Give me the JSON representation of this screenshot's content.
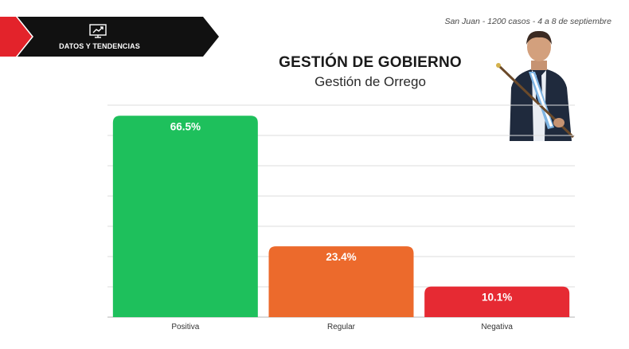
{
  "header": {
    "brand_label": "DATOS Y TENDENCIAS",
    "brand_icon": "trend-chart-icon",
    "survey_info": "San Juan - 1200 casos - 4 a 8 de septiembre"
  },
  "colors": {
    "brand_black": "#111111",
    "brand_red": "#e3232b",
    "positiva": "#1ec05c",
    "regular": "#ec6a2c",
    "negativa": "#e62a33"
  },
  "chart_data": {
    "type": "bar",
    "title": "GESTIÓN DE GOBIERNO",
    "subtitle": "Gestión de Orrego",
    "categories": [
      "Positiva",
      "Regular",
      "Negativa"
    ],
    "values": [
      66.5,
      23.4,
      10.1
    ],
    "data_labels": [
      "66.5%",
      "23.4%",
      "10.1%"
    ],
    "colors": [
      "#1ec05c",
      "#ec6a2c",
      "#e62a33"
    ],
    "xlabel": "",
    "ylabel": "",
    "ylim": [
      0,
      70
    ],
    "grid": true
  }
}
